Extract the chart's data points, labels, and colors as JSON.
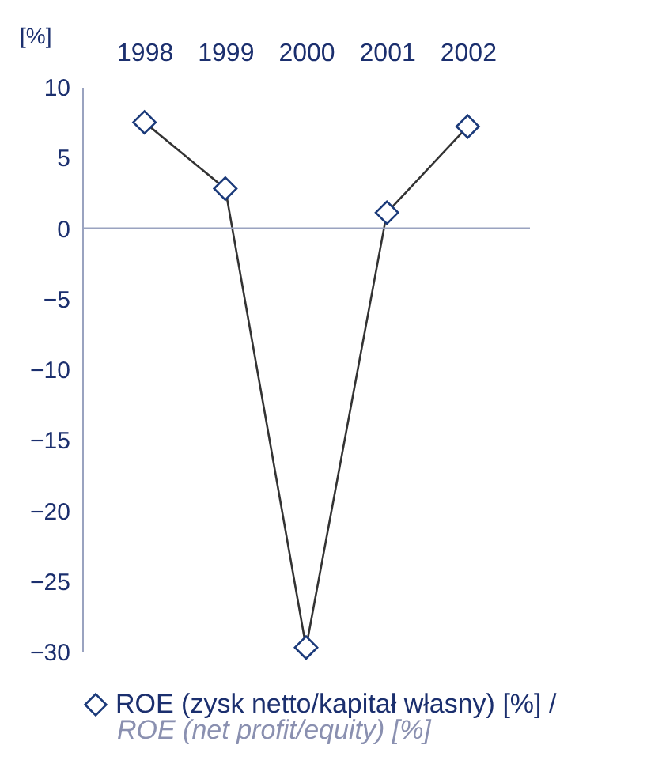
{
  "chart_data": {
    "type": "line",
    "ylabel": "[%]",
    "categories": [
      "1998",
      "1999",
      "2000",
      "2001",
      "2002"
    ],
    "series": [
      {
        "name": "ROE (zysk netto/kapitał własny) [%] /",
        "color": "#1b3a7a",
        "values": [
          7.5,
          2.8,
          -29.7,
          1.1,
          7.2
        ]
      }
    ],
    "ylim": [
      -30,
      10
    ],
    "yticks": [
      -30,
      -25,
      -20,
      -15,
      -10,
      -5,
      0,
      5,
      10
    ],
    "marker": "diamond",
    "legend": "bottom left",
    "ref_lines": [
      {
        "axis": "y",
        "value": 0
      }
    ],
    "annotations": [
      "ROE (net profit/equity) [%]"
    ]
  }
}
